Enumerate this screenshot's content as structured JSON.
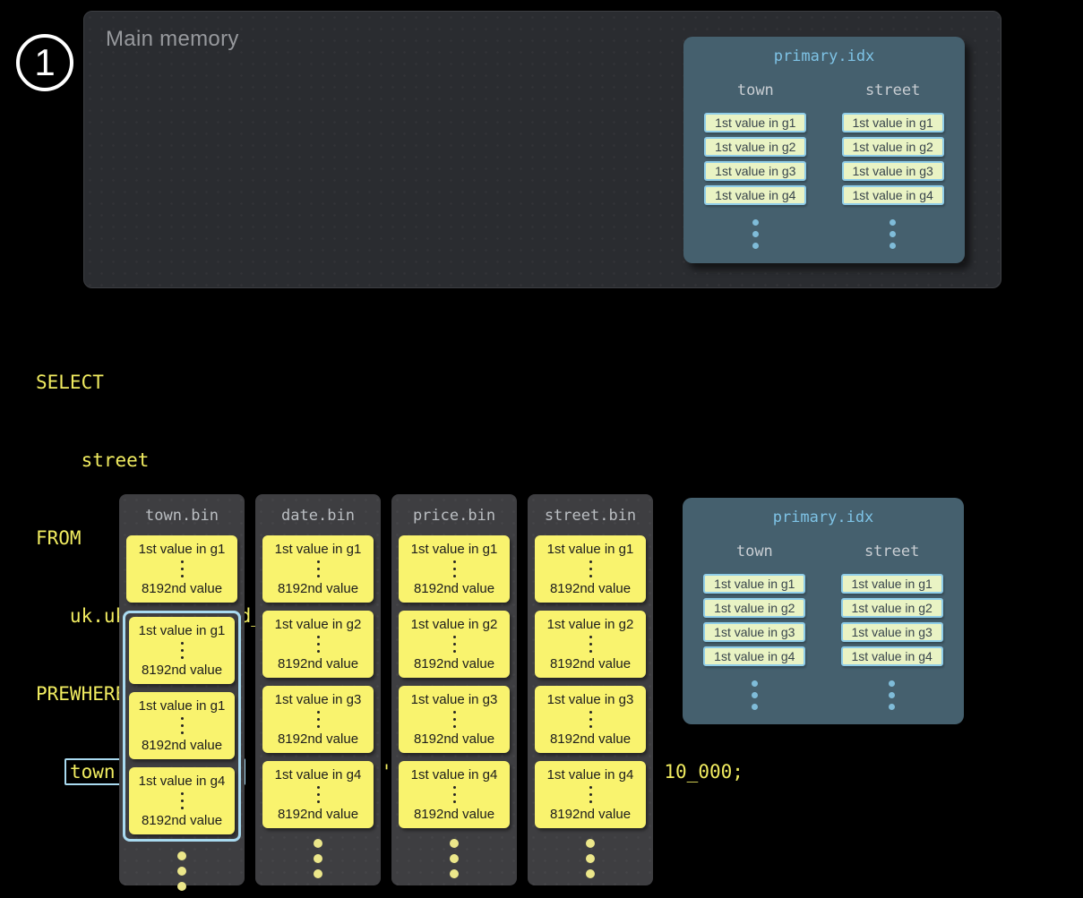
{
  "page": {
    "step_number": "1"
  },
  "main_memory": {
    "label": "Main memory"
  },
  "primary_idx": {
    "title": "primary.idx",
    "columns": [
      {
        "name": "town",
        "entries": [
          "1st value in g1",
          "1st value in g2",
          "1st value in g3",
          "1st value in g4"
        ]
      },
      {
        "name": "street",
        "entries": [
          "1st value in g1",
          "1st value in g2",
          "1st value in g3",
          "1st value in g4"
        ]
      }
    ]
  },
  "sql": {
    "lines": [
      "SELECT",
      "    street",
      "FROM",
      "   uk.uk_price_paid_simple",
      "PREWHERE"
    ],
    "prewhere_indent": "   ",
    "prewhere_highlight": "town = 'LONDON'",
    "prewhere_rest": " AND date > '2024-12-31' AND price < 10_000;"
  },
  "bin_files": [
    {
      "name": "town.bin",
      "granules": [
        {
          "first": "1st value in g1",
          "last": "8192nd value"
        },
        {
          "first": "1st value in g1",
          "last": "8192nd value"
        },
        {
          "first": "1st value in g1",
          "last": "8192nd value"
        },
        {
          "first": "1st value in g4",
          "last": "8192nd value"
        }
      ]
    },
    {
      "name": "date.bin",
      "granules": [
        {
          "first": "1st value in g1",
          "last": "8192nd value"
        },
        {
          "first": "1st value in g2",
          "last": "8192nd value"
        },
        {
          "first": "1st value in g3",
          "last": "8192nd value"
        },
        {
          "first": "1st value in g4",
          "last": "8192nd value"
        }
      ]
    },
    {
      "name": "price.bin",
      "granules": [
        {
          "first": "1st value in g1",
          "last": "8192nd value"
        },
        {
          "first": "1st value in g2",
          "last": "8192nd value"
        },
        {
          "first": "1st value in g3",
          "last": "8192nd value"
        },
        {
          "first": "1st value in g4",
          "last": "8192nd value"
        }
      ]
    },
    {
      "name": "street.bin",
      "granules": [
        {
          "first": "1st value in g1",
          "last": "8192nd value"
        },
        {
          "first": "1st value in g2",
          "last": "8192nd value"
        },
        {
          "first": "1st value in g3",
          "last": "8192nd value"
        },
        {
          "first": "1st value in g4",
          "last": "8192nd value"
        }
      ]
    }
  ],
  "colors": {
    "page_background": "#000000",
    "main_memory_panel": "#2a2c30",
    "index_panel": "#45606e",
    "index_title_blue": "#7ec3e6",
    "chip_background": "#e9f3c4",
    "chip_border_blue": "#8fcde8",
    "granule_yellow": "#f9f36e",
    "code_yellow": "#f1ec60",
    "highlight_border_blue": "#a9daf0",
    "bin_panel": "#3e3e41"
  }
}
